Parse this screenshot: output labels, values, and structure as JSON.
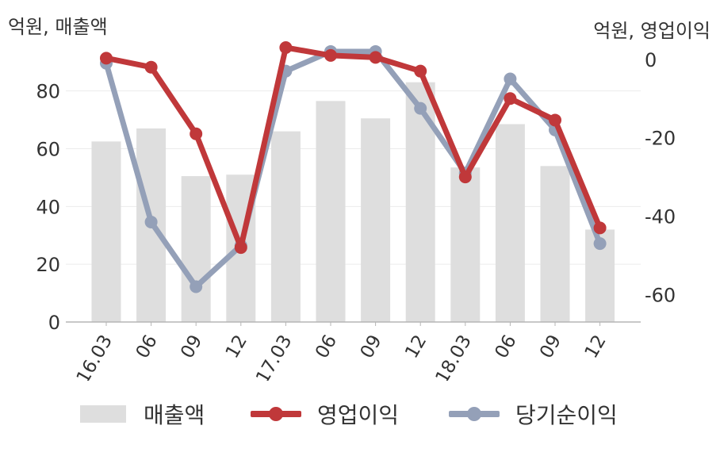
{
  "units": {
    "left": "억원, 매출액",
    "right": "억원, 영업이익"
  },
  "colors": {
    "revenue": "#dedede",
    "operating_profit": "#c0383a",
    "net_income": "#94a0b8"
  },
  "chart_data": {
    "type": "bar",
    "categories": [
      "16.03",
      "06",
      "09",
      "12",
      "17.03",
      "06",
      "09",
      "12",
      "18.03",
      "06",
      "09",
      "12"
    ],
    "left_axis": {
      "ylim": [
        0,
        95
      ],
      "ticks": [
        0,
        20,
        40,
        60,
        80
      ]
    },
    "right_axis": {
      "ylim": [
        -67,
        3
      ],
      "ticks": [
        0,
        -20,
        -40,
        -60
      ]
    },
    "grid": true,
    "legend_position": "bottom",
    "series": [
      {
        "name": "매출액",
        "type": "bar",
        "axis": "left",
        "values": [
          62.5,
          67,
          50.5,
          51,
          66,
          76.5,
          70.5,
          83,
          53.5,
          68.5,
          54,
          32
        ]
      },
      {
        "name": "영업이익",
        "type": "line",
        "axis": "right",
        "values": [
          0.3,
          -2,
          -19,
          -48,
          3,
          1,
          0.5,
          -3,
          -30,
          -10,
          -15.5,
          -43
        ]
      },
      {
        "name": "당기순이익",
        "type": "line",
        "axis": "right",
        "values": [
          -1,
          -41.5,
          -58,
          -47.5,
          -3,
          2,
          2,
          -12.5,
          -29,
          -5,
          -18,
          -47
        ]
      }
    ]
  }
}
